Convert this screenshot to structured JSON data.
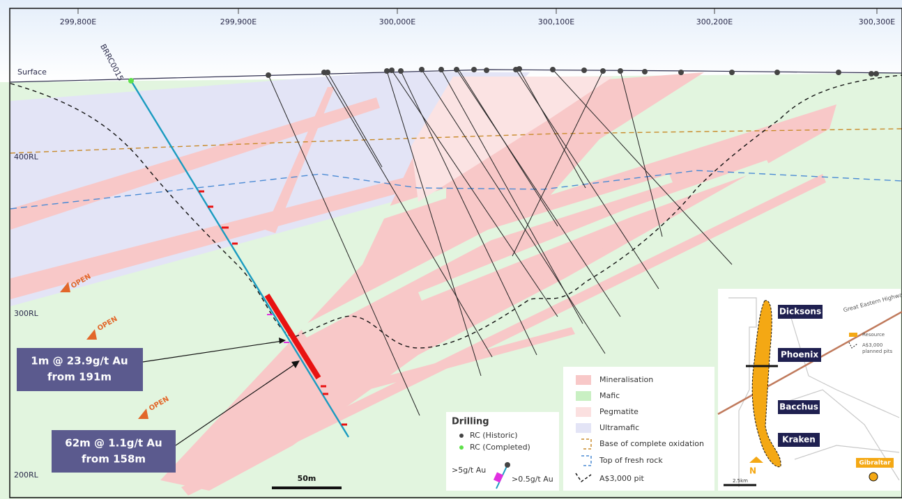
{
  "header": {
    "eastings": [
      "299,800E",
      "299,900E",
      "300,000E",
      "300,100E",
      "300,200E",
      "300,300E"
    ]
  },
  "levels": [
    "400RL",
    "300RL",
    "200RL"
  ],
  "surface_label": "Surface",
  "drillhole_label": "BRRC0015",
  "open_labels": [
    "OPEN",
    "OPEN",
    "OPEN"
  ],
  "callouts": [
    {
      "line1": "1m @ 23.9g/t Au",
      "line2": "from 191m"
    },
    {
      "line1": "62m @ 1.1g/t Au",
      "line2": "from 158m"
    }
  ],
  "scale_bar": "50m",
  "drilling_legend": {
    "title": "Drilling",
    "items": [
      "RC (Historic)",
      "RC (Completed)"
    ],
    "high_grade": ">5g/t Au",
    "low_grade": ">0.5g/t Au"
  },
  "legend": {
    "items": [
      "Mineralisation",
      "Mafic",
      "Pegmatite",
      "Ultramafic",
      "Base of complete oxidation",
      "Top of fresh rock",
      "A$3,000 pit"
    ]
  },
  "inset": {
    "deposits": [
      "Dicksons",
      "Phoenix",
      "Bacchus",
      "Kraken"
    ],
    "town": "Gibraltar",
    "road": "Great Eastern Highway",
    "legend": [
      "Resource",
      "A$3,000",
      "planned pits"
    ],
    "north": "N",
    "scale": "2.5km"
  }
}
